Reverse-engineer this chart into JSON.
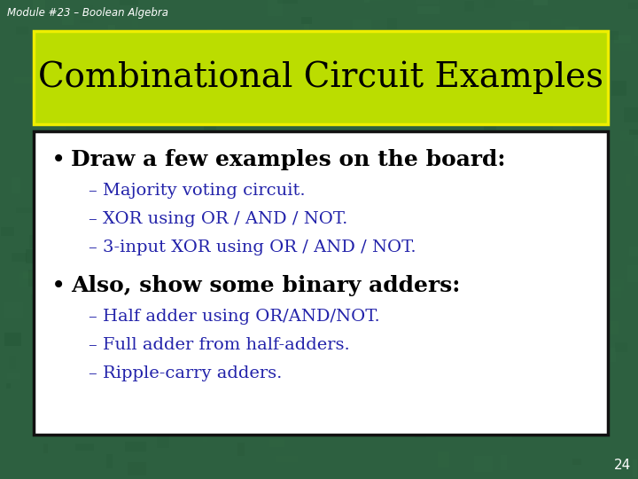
{
  "module_label": "Module #23 – Boolean Algebra",
  "title": "Combinational Circuit Examples",
  "title_bg_color": "#BBDD00",
  "title_border_color": "#EEEE00",
  "title_text_color": "#000000",
  "content_bg_color": "#FFFFFF",
  "content_border_color": "#111111",
  "background_color": "#2d6040",
  "slide_number": "24",
  "bullet1": "Draw a few examples on the board:",
  "bullet1_color": "#000000",
  "sub1_1": "– Majority voting circuit.",
  "sub1_2": "– XOR using OR / AND / NOT.",
  "sub1_3": "– 3-input XOR using OR / AND / NOT.",
  "sub_color": "#2222aa",
  "bullet2": "Also, show some binary adders:",
  "bullet2_color": "#000000",
  "sub2_1": "– Half adder using OR/AND/NOT.",
  "sub2_2": "– Full adder from half-adders.",
  "sub2_3": "– Ripple-carry adders.",
  "module_label_color": "#FFFFFF",
  "slide_num_color": "#FFFFFF",
  "title_fontsize": 28,
  "bullet_fontsize": 18,
  "sub_fontsize": 14
}
